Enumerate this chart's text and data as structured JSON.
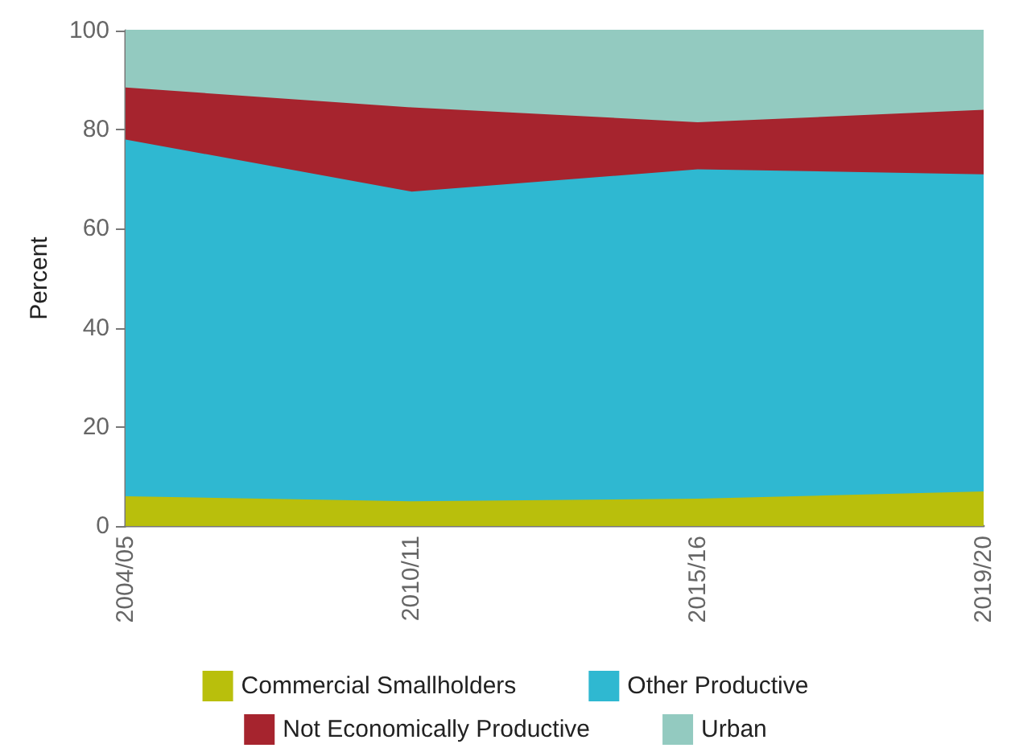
{
  "chart_data": {
    "type": "area",
    "ylabel": "Percent",
    "categories": [
      "2004/05",
      "2010/11",
      "2015/16",
      "2019/20"
    ],
    "stacked": true,
    "series": [
      {
        "name": "Commercial Smallholders",
        "color": "#b9bf0c",
        "values": [
          6,
          5,
          5.5,
          7
        ]
      },
      {
        "name": "Other Productive",
        "color": "#2fb8d1",
        "values": [
          72,
          62.5,
          66.5,
          64
        ]
      },
      {
        "name": "Not Economically Productive",
        "color": "#a6242e",
        "values": [
          10.5,
          17,
          9.5,
          13
        ]
      },
      {
        "name": "Urban",
        "color": "#93cac0",
        "values": [
          11.5,
          15.5,
          18.5,
          16
        ]
      }
    ],
    "ylim": [
      0,
      100
    ],
    "yticks": [
      0,
      20,
      40,
      60,
      80,
      100
    ],
    "grid": false,
    "legend": "bottom",
    "marker": "none"
  }
}
